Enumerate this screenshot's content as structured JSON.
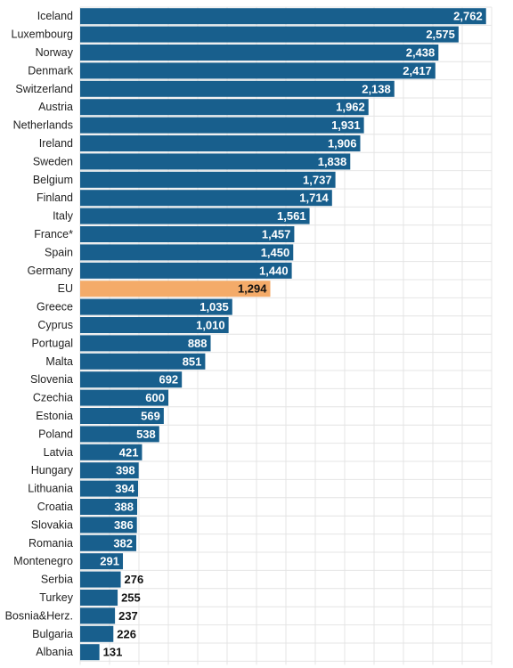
{
  "chart_data": {
    "type": "bar",
    "orientation": "horizontal",
    "categories": [
      "Iceland",
      "Luxembourg",
      "Norway",
      "Denmark",
      "Switzerland",
      "Austria",
      "Netherlands",
      "Ireland",
      "Sweden",
      "Belgium",
      "Finland",
      "Italy",
      "France*",
      "Spain",
      "Germany",
      "EU",
      "Greece",
      "Cyprus",
      "Portugal",
      "Malta",
      "Slovenia",
      "Czechia",
      "Estonia",
      "Poland",
      "Latvia",
      "Hungary",
      "Lithuania",
      "Croatia",
      "Slovakia",
      "Romania",
      "Montenegro",
      "Serbia",
      "Turkey",
      "Bosnia&Herz.",
      "Bulgaria",
      "Albania"
    ],
    "values": [
      2762,
      2575,
      2438,
      2417,
      2138,
      1962,
      1931,
      1906,
      1838,
      1737,
      1714,
      1561,
      1457,
      1450,
      1440,
      1294,
      1035,
      1010,
      888,
      851,
      692,
      600,
      569,
      538,
      421,
      398,
      394,
      388,
      386,
      382,
      291,
      276,
      255,
      237,
      226,
      131
    ],
    "value_labels": [
      "2,762",
      "2,575",
      "2,438",
      "2,417",
      "2,138",
      "1,962",
      "1,931",
      "1,906",
      "1,838",
      "1,737",
      "1,714",
      "1,561",
      "1,457",
      "1,450",
      "1,440",
      "1,294",
      "1,035",
      "1,010",
      "888",
      "851",
      "692",
      "600",
      "569",
      "538",
      "421",
      "398",
      "394",
      "388",
      "386",
      "382",
      "291",
      "276",
      "255",
      "237",
      "226",
      "131"
    ],
    "highlight_category": "EU",
    "xlim": [
      0,
      2800
    ],
    "grid": true,
    "legend": "none",
    "colors": {
      "bar": "#185f8d",
      "highlight": "#f4ab69",
      "grid": "#e4e4e4",
      "label_on_bar": "#ffffff",
      "label_dark": "#111111"
    }
  }
}
